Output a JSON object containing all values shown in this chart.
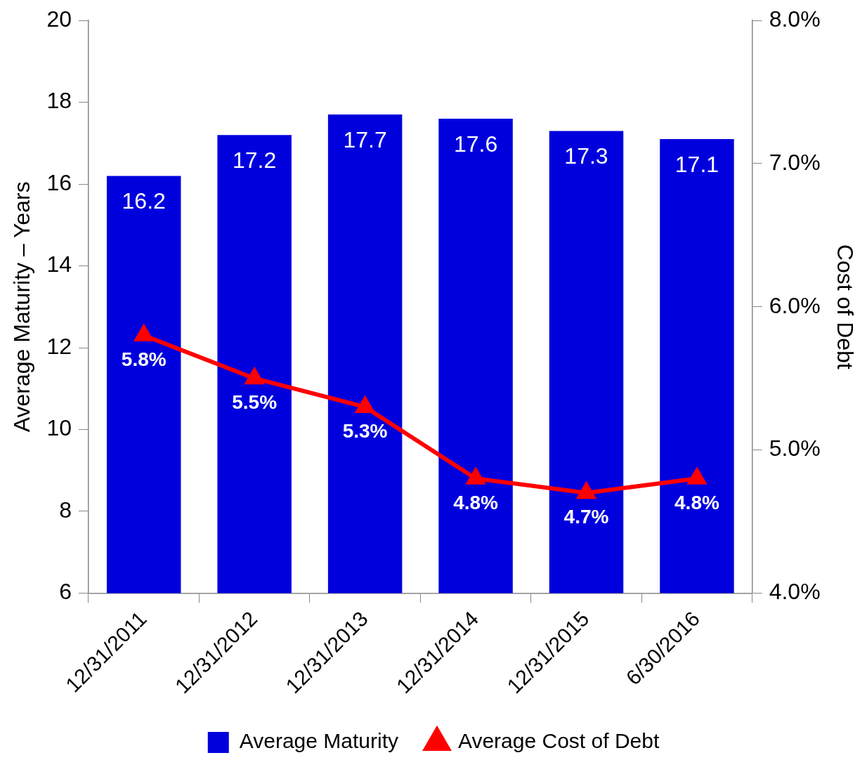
{
  "chart_data": {
    "type": "bar",
    "ylabel": "Average Maturity – Years",
    "y2label": "Cost of Debt",
    "categories": [
      "12/31/2011",
      "12/31/2012",
      "12/31/2013",
      "12/31/2014",
      "12/31/2015",
      "6/30/2016"
    ],
    "series": [
      {
        "name": "Average Maturity",
        "color": "#0000dd",
        "values": [
          16.2,
          17.2,
          17.7,
          17.6,
          17.3,
          17.1
        ],
        "value_labels": [
          "16.2",
          "17.2",
          "17.7",
          "17.6",
          "17.3",
          "17.1"
        ]
      },
      {
        "name": "Average Cost of Debt",
        "type": "line",
        "axis": "y2",
        "color": "#ff0000",
        "marker": "triangle",
        "values": [
          5.8,
          5.5,
          5.3,
          4.8,
          4.7,
          4.8
        ],
        "value_labels": [
          "5.8%",
          "5.5%",
          "5.3%",
          "4.8%",
          "4.7%",
          "4.8%"
        ]
      }
    ],
    "ylim": [
      6,
      20
    ],
    "yticks": [
      6,
      8,
      10,
      12,
      14,
      16,
      18,
      20
    ],
    "y2lim": [
      4,
      8
    ],
    "y2ticks": [
      {
        "value": 4,
        "label": "4.0%"
      },
      {
        "value": 5,
        "label": "5.0%"
      },
      {
        "value": 6,
        "label": "6.0%"
      },
      {
        "value": 7,
        "label": "7.0%"
      },
      {
        "value": 8,
        "label": "8.0%"
      }
    ],
    "grid": false,
    "legend": "bottom"
  }
}
